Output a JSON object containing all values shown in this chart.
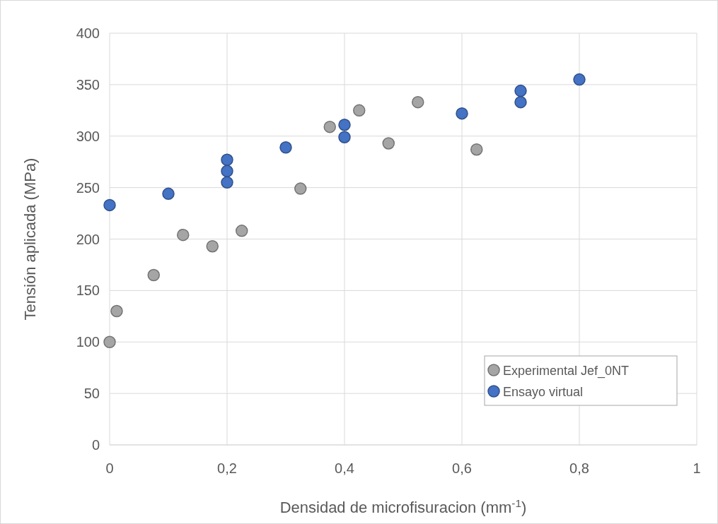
{
  "chart_data": {
    "type": "scatter",
    "xlabel": "Densidad de microfisuracion (mm$^{-1}$)",
    "ylabel": "Tensión aplicada (MPa)",
    "xlim": [
      0,
      1
    ],
    "xticks": [
      0,
      {
        "value": 0.2,
        "label": "0,2"
      },
      {
        "value": 0.4,
        "label": "0,4"
      },
      {
        "value": 0.6,
        "label": "0,6"
      },
      {
        "value": 0.8,
        "label": "0,8"
      },
      1
    ],
    "ylim": [
      0,
      400
    ],
    "yticks": [
      0,
      50,
      100,
      150,
      200,
      250,
      300,
      350,
      400
    ],
    "grid": true,
    "legend": "bottom right",
    "marker": "circle",
    "series": [
      {
        "name": "Experimental Jef_0NT",
        "color": "#a5a5a5",
        "x": [
          0,
          0.012,
          0.075,
          0.125,
          0.175,
          0.225,
          0.325,
          0.375,
          0.425,
          0.475,
          0.525,
          0.625
        ],
        "values": [
          100,
          130,
          165,
          204,
          193,
          208,
          249,
          309,
          325,
          293,
          333,
          287
        ]
      },
      {
        "name": "Ensayo virtual",
        "color": "#4472c4",
        "x": [
          0,
          0.1,
          0.2,
          0.2,
          0.2,
          0.3,
          0.4,
          0.4,
          0.6,
          0.7,
          0.7,
          0.8
        ],
        "values": [
          233,
          244,
          277,
          266,
          255,
          289,
          311,
          299,
          322,
          344,
          333,
          355
        ]
      }
    ]
  }
}
